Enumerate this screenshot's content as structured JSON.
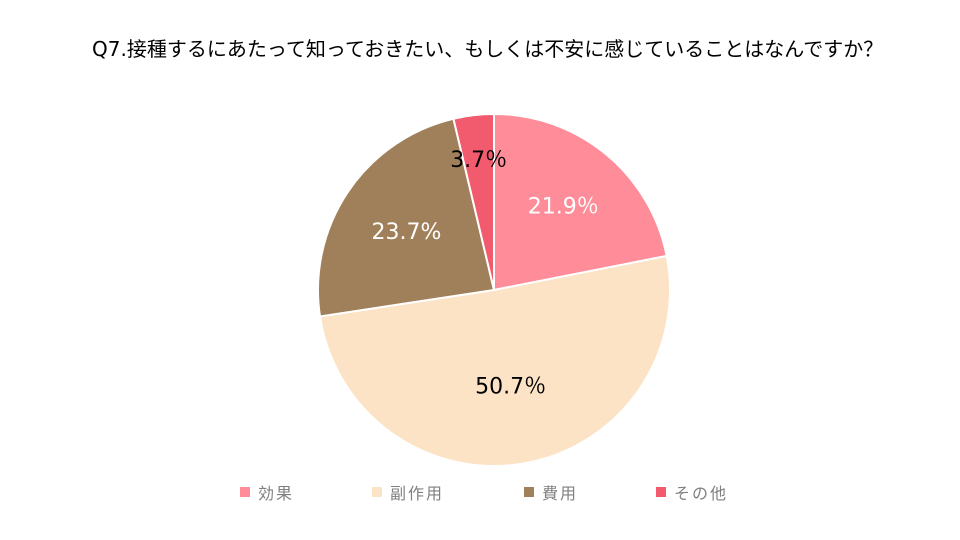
{
  "chart_data": {
    "type": "pie",
    "title": "Q7.接種するにあたって知っておきたい、もしくは不安に感じていることはなんですか？",
    "categories": [
      "効果",
      "副作用",
      "費用",
      "その他"
    ],
    "values": [
      21.9,
      50.7,
      23.7,
      3.7
    ],
    "labels": [
      "21.9％",
      "50.7％",
      "23.7%",
      "3.7％"
    ],
    "colors": [
      "#ff8c99",
      "#fce3c5",
      "#a0805a",
      "#f25a6e"
    ],
    "label_colors": [
      "#ffffff",
      "#000000",
      "#ffffff",
      "#000000"
    ],
    "legend_position": "bottom",
    "start_angle": "top",
    "direction": "clockwise"
  }
}
